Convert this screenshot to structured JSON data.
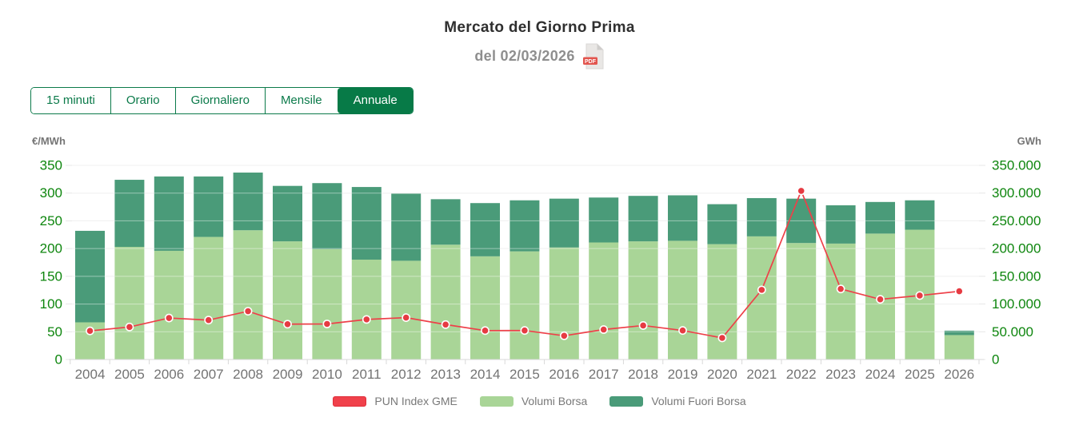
{
  "header": {
    "title": "Mercato del Giorno Prima",
    "subtitle": "del 02/03/2026",
    "pdf_badge": "PDF"
  },
  "tabs": {
    "items": [
      {
        "label": "15 minuti",
        "active": false
      },
      {
        "label": "Orario",
        "active": false
      },
      {
        "label": "Giornaliero",
        "active": false
      },
      {
        "label": "Mensile",
        "active": false
      },
      {
        "label": "Annuale",
        "active": true
      }
    ]
  },
  "chart_data": {
    "type": "bar",
    "subtype": "stacked-bars-with-line-overlay",
    "title": "Mercato del Giorno Prima del 02/03/2026",
    "categories": [
      "2004",
      "2005",
      "2006",
      "2007",
      "2008",
      "2009",
      "2010",
      "2011",
      "2012",
      "2013",
      "2014",
      "2015",
      "2016",
      "2017",
      "2018",
      "2019",
      "2020",
      "2021",
      "2022",
      "2023",
      "2024",
      "2025",
      "2026"
    ],
    "left_axis": {
      "label": "€/MWh",
      "tick_labels": [
        "350",
        "300",
        "250",
        "200",
        "150",
        "100",
        "50",
        "0"
      ],
      "tick_values": [
        350,
        300,
        250,
        200,
        150,
        100,
        50,
        0
      ],
      "range": [
        0,
        350
      ]
    },
    "right_axis": {
      "label": "GWh",
      "tick_labels": [
        "350.000",
        "300.000",
        "250.000",
        "200.000",
        "150.000",
        "100.000",
        "50.000",
        "0"
      ],
      "tick_values": [
        350000,
        300000,
        250000,
        200000,
        150000,
        100000,
        50000,
        0
      ],
      "range": [
        0,
        350000
      ]
    },
    "series": [
      {
        "name": "Volumi Borsa",
        "kind": "bar-stack",
        "unit": "GWh",
        "color": "#a9d597",
        "values": [
          67000,
          203000,
          196000,
          221000,
          233000,
          213000,
          199000,
          180000,
          178000,
          207000,
          186000,
          195000,
          202000,
          211000,
          213000,
          214000,
          208000,
          222000,
          210000,
          209000,
          227000,
          234000,
          44000
        ]
      },
      {
        "name": "Volumi Fuori Borsa",
        "kind": "bar-stack",
        "unit": "GWh",
        "color": "#4a9b79",
        "values": [
          165000,
          121000,
          134000,
          109000,
          104000,
          100000,
          119000,
          131000,
          121000,
          82000,
          96000,
          92000,
          88000,
          81000,
          82000,
          82000,
          72000,
          69000,
          80000,
          69000,
          57000,
          53000,
          8000
        ]
      },
      {
        "name": "PUN Index GME",
        "kind": "line",
        "unit": "€/MWh",
        "color": "#f0414b",
        "values": [
          51.6,
          58.6,
          74.8,
          71.0,
          87.0,
          63.7,
          64.1,
          72.2,
          75.5,
          63.0,
          52.1,
          52.3,
          42.8,
          54.0,
          61.3,
          52.3,
          38.9,
          125.5,
          304.0,
          127.2,
          108.5,
          115.3,
          123.0
        ]
      }
    ],
    "grid": true,
    "legend_position": "bottom"
  },
  "legend": {
    "items": [
      {
        "label": "PUN Index GME",
        "color": "#f0414b",
        "border": "#e02e3a"
      },
      {
        "label": "Volumi Borsa",
        "color": "#a9d597",
        "border": "#a9d597"
      },
      {
        "label": "Volumi Fuori Borsa",
        "color": "#4a9b79",
        "border": "#4a9b79"
      }
    ]
  },
  "colors": {
    "axis_tick_green": "#0e860e",
    "axis_unit_gray": "#757575",
    "x_label_gray": "#737373",
    "gridline": "#e7e7e7",
    "baseline": "#d8d8d8",
    "tab_green": "#0b7a4a",
    "tab_active_bg": "#077a47",
    "line_red": "#ee4049",
    "dot_red": "#e63b42"
  }
}
